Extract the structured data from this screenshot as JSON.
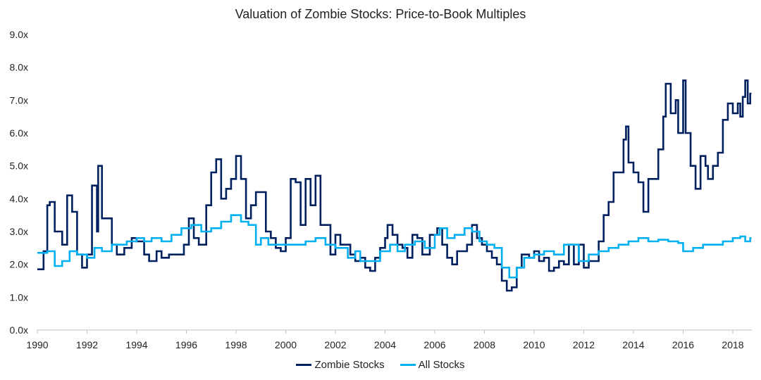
{
  "chart_data": {
    "type": "line",
    "title": "Valuation of Zombie Stocks: Price-to-Book Multiples",
    "xlim": [
      1990,
      2018.7
    ],
    "ylim": [
      0,
      9
    ],
    "x_ticks": [
      "1990",
      "1992",
      "1994",
      "1996",
      "1998",
      "2000",
      "2002",
      "2004",
      "2006",
      "2008",
      "2010",
      "2012",
      "2014",
      "2016",
      "2018"
    ],
    "y_ticks": [
      "0.0x",
      "1.0x",
      "2.0x",
      "3.0x",
      "4.0x",
      "5.0x",
      "6.0x",
      "7.0x",
      "8.0x",
      "9.0x"
    ],
    "grid": false,
    "legend": "bottom",
    "series": [
      {
        "name": "Zombie Stocks",
        "color": "#002060",
        "x": [
          1990,
          1990.25,
          1990.4,
          1990.5,
          1990.7,
          1991,
          1991.2,
          1991.4,
          1991.6,
          1991.8,
          1992,
          1992.2,
          1992.4,
          1992.45,
          1992.6,
          1992.8,
          1993,
          1993.2,
          1993.5,
          1993.8,
          1994,
          1994.3,
          1994.5,
          1994.8,
          1995,
          1995.3,
          1995.6,
          1995.9,
          1996.1,
          1996.3,
          1996.5,
          1996.8,
          1997,
          1997.2,
          1997.4,
          1997.6,
          1997.8,
          1998,
          1998.2,
          1998.4,
          1998.6,
          1998.8,
          1999,
          1999.2,
          1999.4,
          1999.6,
          1999.8,
          2000,
          2000.2,
          2000.4,
          2000.6,
          2000.8,
          2001,
          2001.2,
          2001.4,
          2001.6,
          2001.8,
          2002,
          2002.2,
          2002.4,
          2002.6,
          2002.8,
          2003,
          2003.2,
          2003.4,
          2003.6,
          2003.8,
          2004,
          2004.1,
          2004.3,
          2004.5,
          2004.7,
          2004.9,
          2005.1,
          2005.3,
          2005.5,
          2005.8,
          2006.1,
          2006.3,
          2006.5,
          2006.7,
          2006.9,
          2007.1,
          2007.3,
          2007.5,
          2007.7,
          2007.9,
          2008.1,
          2008.3,
          2008.5,
          2008.7,
          2008.9,
          2009.1,
          2009.3,
          2009.5,
          2009.8,
          2010,
          2010.2,
          2010.4,
          2010.6,
          2010.8,
          2011,
          2011.2,
          2011.4,
          2011.6,
          2011.8,
          2012,
          2012.2,
          2012.4,
          2012.6,
          2012.8,
          2013,
          2013.2,
          2013.4,
          2013.6,
          2013.7,
          2013.8,
          2014,
          2014.2,
          2014.4,
          2014.6,
          2014.8,
          2015,
          2015.2,
          2015.3,
          2015.5,
          2015.7,
          2015.8,
          2016,
          2016.1,
          2016.3,
          2016.5,
          2016.7,
          2016.9,
          2017,
          2017.2,
          2017.4,
          2017.6,
          2017.8,
          2018,
          2018.2,
          2018.3,
          2018.4,
          2018.5,
          2018.6,
          2018.7
        ],
        "values": [
          1.85,
          2.4,
          3.8,
          3.9,
          3.0,
          2.6,
          4.1,
          3.6,
          2.3,
          1.9,
          2.3,
          4.4,
          3.0,
          5.0,
          3.4,
          3.4,
          2.6,
          2.3,
          2.5,
          2.8,
          2.7,
          2.3,
          2.1,
          2.4,
          2.2,
          2.3,
          2.3,
          2.6,
          3.4,
          2.8,
          2.6,
          3.8,
          4.8,
          5.2,
          4.0,
          4.3,
          4.6,
          5.3,
          4.6,
          3.4,
          3.8,
          4.2,
          4.2,
          3.0,
          2.8,
          2.5,
          2.4,
          2.8,
          4.6,
          4.5,
          3.2,
          4.6,
          3.8,
          4.7,
          3.2,
          3.2,
          2.3,
          2.9,
          2.6,
          2.6,
          2.3,
          2.1,
          2.2,
          1.9,
          1.8,
          2.2,
          2.5,
          2.8,
          3.2,
          2.9,
          2.6,
          2.5,
          2.2,
          2.9,
          2.8,
          2.3,
          2.9,
          3.1,
          2.6,
          2.2,
          2.0,
          2.4,
          2.4,
          2.6,
          3.2,
          2.8,
          2.6,
          2.4,
          2.2,
          2.0,
          1.5,
          1.2,
          1.3,
          1.9,
          2.3,
          2.2,
          2.4,
          2.1,
          2.2,
          1.8,
          1.9,
          2.1,
          2.0,
          2.6,
          2.0,
          2.6,
          1.9,
          2.1,
          2.1,
          2.7,
          3.5,
          3.9,
          4.8,
          4.8,
          5.8,
          6.2,
          5.1,
          4.8,
          4.5,
          3.6,
          4.6,
          4.6,
          5.5,
          6.5,
          7.5,
          6.6,
          7.0,
          6.0,
          7.6,
          6.0,
          5.0,
          4.3,
          5.3,
          5.0,
          4.6,
          5.0,
          5.4,
          6.4,
          6.9,
          6.6,
          6.9,
          6.5,
          7.1,
          7.6,
          6.9,
          7.2
        ]
      },
      {
        "name": "All Stocks",
        "color": "#00B0F0",
        "x": [
          1990,
          1990.4,
          1990.7,
          1991,
          1991.3,
          1991.6,
          1992,
          1992.3,
          1992.6,
          1993,
          1993.3,
          1993.6,
          1994,
          1994.3,
          1994.6,
          1995,
          1995.4,
          1995.8,
          1996.2,
          1996.6,
          1997,
          1997.4,
          1997.8,
          1998.2,
          1998.5,
          1998.8,
          1999,
          1999.3,
          1999.6,
          2000,
          2000.4,
          2000.8,
          2001.2,
          2001.6,
          2002,
          2002.3,
          2002.5,
          2002.8,
          2003,
          2003.4,
          2003.8,
          2004.2,
          2004.5,
          2004.8,
          2005.2,
          2005.6,
          2006,
          2006.2,
          2006.5,
          2006.8,
          2007.2,
          2007.5,
          2007.8,
          2008.1,
          2008.4,
          2008.7,
          2009,
          2009.3,
          2009.6,
          2010,
          2010.4,
          2010.8,
          2011.2,
          2011.5,
          2011.8,
          2012.2,
          2012.6,
          2013,
          2013.4,
          2013.8,
          2014.2,
          2014.6,
          2015,
          2015.4,
          2015.8,
          2016,
          2016.4,
          2016.8,
          2017.2,
          2017.6,
          2018,
          2018.3,
          2018.5,
          2018.7
        ],
        "values": [
          2.35,
          2.4,
          1.95,
          2.1,
          2.4,
          2.3,
          2.2,
          2.5,
          2.4,
          2.6,
          2.6,
          2.7,
          2.8,
          2.7,
          2.8,
          2.7,
          2.9,
          3.1,
          3.2,
          3.0,
          3.1,
          3.3,
          3.5,
          3.3,
          3.2,
          2.6,
          2.8,
          2.6,
          2.6,
          2.6,
          2.6,
          2.7,
          2.8,
          2.6,
          2.5,
          2.5,
          2.2,
          2.4,
          2.1,
          2.1,
          2.4,
          2.6,
          2.4,
          2.6,
          2.7,
          2.5,
          2.9,
          3.1,
          2.8,
          2.9,
          3.1,
          3.0,
          2.7,
          2.6,
          2.5,
          1.9,
          1.6,
          1.9,
          2.2,
          2.3,
          2.4,
          2.3,
          2.6,
          2.6,
          2.1,
          2.3,
          2.4,
          2.5,
          2.6,
          2.7,
          2.8,
          2.7,
          2.75,
          2.7,
          2.65,
          2.4,
          2.5,
          2.6,
          2.6,
          2.7,
          2.8,
          2.85,
          2.7,
          2.8
        ]
      }
    ]
  }
}
